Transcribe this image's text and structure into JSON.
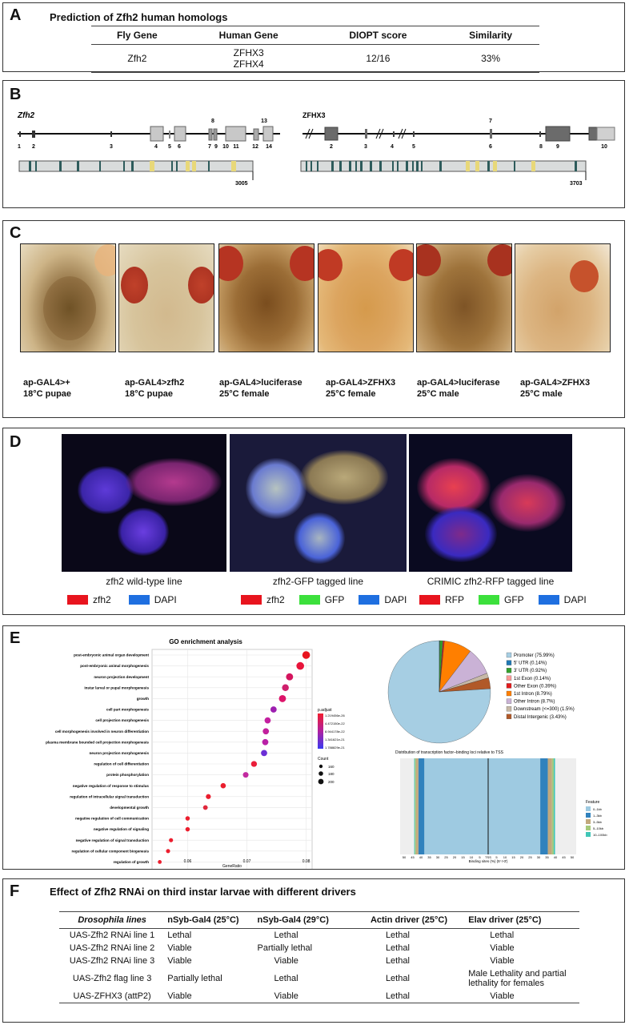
{
  "panelA": {
    "label": "A",
    "title": "Prediction of Zfh2 human homologs",
    "headers": [
      "Fly Gene",
      "Human Gene",
      "DIOPT score",
      "Similarity"
    ],
    "row": {
      "fly": "Zfh2",
      "human1": "ZFHX3",
      "human2": "ZFHX4",
      "diopt": "12/16",
      "similarity": "33%"
    }
  },
  "panelB": {
    "label": "B",
    "left": {
      "gene": "Zfh2",
      "exons": [
        "1",
        "2",
        "3",
        "4",
        "5",
        "6",
        "7",
        "8",
        "9",
        "10",
        "11",
        "12",
        "13",
        "14"
      ],
      "protein_length": "3005"
    },
    "right": {
      "gene": "ZFHX3",
      "exons": [
        "2",
        "3",
        "4",
        "5",
        "6",
        "7",
        "8",
        "9",
        "10"
      ],
      "protein_length": "3703"
    }
  },
  "panelC": {
    "label": "C",
    "images": [
      {
        "line1": "ap-GAL4>+",
        "line2": "18°C pupae"
      },
      {
        "line1": "ap-GAL4>zfh2",
        "line2": "18°C pupae"
      },
      {
        "line1": "ap-GAL4>luciferase",
        "line2": "25°C female"
      },
      {
        "line1": "ap-GAL4>ZFHX3",
        "line2": "25°C female"
      },
      {
        "line1": "ap-GAL4>luciferase",
        "line2": "25°C male"
      },
      {
        "line1": "ap-GAL4>ZFHX3",
        "line2": "25°C male"
      }
    ]
  },
  "panelD": {
    "label": "D",
    "images": [
      {
        "caption": "zfh2 wild-type line",
        "legend": [
          {
            "name": "zfh2",
            "color": "#e8141e"
          },
          {
            "name": "DAPI",
            "color": "#1f6fe0"
          }
        ]
      },
      {
        "caption": "zfh2-GFP tagged line",
        "legend": [
          {
            "name": "zfh2",
            "color": "#e8141e"
          },
          {
            "name": "GFP",
            "color": "#3ce03c"
          },
          {
            "name": "DAPI",
            "color": "#1f6fe0"
          }
        ]
      },
      {
        "caption": "CRIMIC zfh2-RFP tagged line",
        "legend": [
          {
            "name": "RFP",
            "color": "#e8141e"
          },
          {
            "name": "GFP",
            "color": "#3ce03c"
          },
          {
            "name": "DAPI",
            "color": "#1f6fe0"
          }
        ]
      }
    ]
  },
  "panelE": {
    "label": "E",
    "go_title": "GO enrichment analysis",
    "padj_title": "p.adjust",
    "padj_ticks": [
      "1.219456e-26",
      "4.472150e-22",
      "8.944178e-22",
      "1.341621e-21",
      "1.788829e-21"
    ],
    "count_title": "Count",
    "count_ticks": [
      "160",
      "180",
      "200"
    ],
    "pie_legend": [
      {
        "label": "Promoter (75.99%)",
        "color": "#a6cee3"
      },
      {
        "label": "5' UTR (0.14%)",
        "color": "#1f78b4"
      },
      {
        "label": "3' UTR (0.92%)",
        "color": "#33a02c"
      },
      {
        "label": "1st Exon (0.14%)",
        "color": "#fb9a99"
      },
      {
        "label": "Other Exon (0.39%)",
        "color": "#e31a1c"
      },
      {
        "label": "1st Intron (8.79%)",
        "color": "#ff7f00"
      },
      {
        "label": "Other Intron (8.7%)",
        "color": "#cab2d6"
      },
      {
        "label": "Downstream (<=300) (1.5%)",
        "color": "#c7b9a7"
      },
      {
        "label": "Distal Intergenic (3.43%)",
        "color": "#b15928"
      }
    ],
    "tss_title": "Distribution of transcription factor–binding loci relative to TSS",
    "tss_xlabel": "Binding sites (%) (5'->3')",
    "tss_center": "TSS",
    "tss_ticks": [
      "50",
      "45",
      "40",
      "35",
      "30",
      "25",
      "20",
      "15",
      "10",
      "5",
      "0",
      "5",
      "10",
      "15",
      "20",
      "25",
      "30",
      "35",
      "40",
      "45",
      "50"
    ],
    "feature_title": "Feature",
    "features": [
      {
        "label": "0–1kb",
        "color": "#9ecae1"
      },
      {
        "label": "1–3kb",
        "color": "#3182bd"
      },
      {
        "label": "3–5kb",
        "color": "#c2a97d"
      },
      {
        "label": "5–10kb",
        "color": "#a6c97a"
      },
      {
        "label": "10–100kb",
        "color": "#41c6b7"
      }
    ]
  },
  "chart_data": {
    "type": "scatter",
    "title": "GO enrichment analysis",
    "xlabel": "GeneRatio",
    "ylabel": "",
    "xlim": [
      0.054,
      0.081
    ],
    "xticks": [
      "0.06",
      "0.07",
      "0.08"
    ],
    "categories": [
      "post-embryonic animal organ development",
      "post-embryonic animal morphogenesis",
      "neuron projection development",
      "instar larval or pupal morphogenesis",
      "growth",
      "cell part morphogenesis",
      "cell projection morphogenesis",
      "cell morphogenesis involved in neuron differentiation",
      "plasma membrane bounded cell projection morphogenesis",
      "neuron projection morphogenesis",
      "regulation of cell differentiation",
      "protein phosphorylation",
      "negative regulation of response to stimulus",
      "regulation of intracellular signal transduction",
      "developmental growth",
      "negative regulation of cell communication",
      "negative regulation of signaling",
      "negative regulation of signal transduction",
      "regulation of cellular component biogenesis",
      "regulation of growth"
    ],
    "x": [
      0.08,
      0.079,
      0.0772,
      0.0765,
      0.076,
      0.0745,
      0.0735,
      0.0732,
      0.0731,
      0.0729,
      0.0712,
      0.0698,
      0.066,
      0.0635,
      0.063,
      0.06,
      0.06,
      0.0572,
      0.0567,
      0.0553
    ],
    "color": [
      "#e8141e",
      "#e8143a",
      "#d4145e",
      "#cf1f6c",
      "#dd146a",
      "#9d1fb0",
      "#c420a0",
      "#c2209d",
      "#b920a7",
      "#6b2fd6",
      "#ea1e3a",
      "#c22aa0",
      "#ea1e2e",
      "#ea1e2e",
      "#e0283c",
      "#ec1e2e",
      "#ec1e2e",
      "#ec1e2e",
      "#ec1e2e",
      "#ec1e2e"
    ],
    "size": [
      200,
      200,
      190,
      185,
      190,
      175,
      175,
      175,
      175,
      175,
      170,
      165,
      160,
      155,
      150,
      145,
      145,
      140,
      140,
      135
    ]
  },
  "pie_data": {
    "type": "pie",
    "values": [
      75.99,
      0.14,
      0.92,
      0.14,
      0.39,
      8.79,
      8.7,
      1.5,
      3.43
    ]
  },
  "panelF": {
    "label": "F",
    "title": "Effect of Zfh2 RNAi on third instar larvae with different drivers",
    "headers": [
      "Drosophila lines",
      "nSyb-Gal4 (25°C)",
      "nSyb-Gal4 (29°C)",
      "Actin driver (25°C)",
      "Elav driver (25°C)"
    ],
    "rows": [
      [
        "UAS-Zfh2 RNAi line 1",
        "Lethal",
        "Lethal",
        "Lethal",
        "Lethal"
      ],
      [
        "UAS-Zfh2 RNAi line 2",
        "Viable",
        "Partially lethal",
        "Lethal",
        "Viable"
      ],
      [
        "UAS-Zfh2 RNAi line 3",
        "Viable",
        "Viable",
        "Lethal",
        "Viable"
      ],
      [
        "UAS-Zfh2 flag line 3",
        "Partially lethal",
        "Lethal",
        "Lethal",
        "Male Lethality and partial lethality for females"
      ],
      [
        "UAS-ZFHX3 (attP2)",
        "Viable",
        "Viable",
        "Lethal",
        "Viable"
      ]
    ]
  }
}
